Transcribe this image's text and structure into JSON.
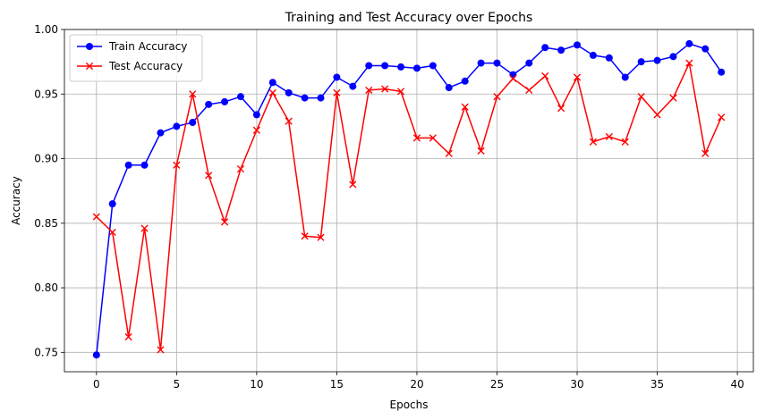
{
  "chart_data": {
    "type": "line",
    "title": "Training and Test Accuracy over Epochs",
    "xlabel": "Epochs",
    "ylabel": "Accuracy",
    "xlim": [
      -2,
      41
    ],
    "ylim": [
      0.735,
      1.0
    ],
    "xticks": [
      0,
      5,
      10,
      15,
      20,
      25,
      30,
      35,
      40
    ],
    "yticks": [
      0.75,
      0.8,
      0.85,
      0.9,
      0.95,
      1.0
    ],
    "ytick_labels": [
      "0.75",
      "0.80",
      "0.85",
      "0.90",
      "0.95",
      "1.00"
    ],
    "grid": true,
    "legend_position": "top-left",
    "x": [
      0,
      1,
      2,
      3,
      4,
      5,
      6,
      7,
      8,
      9,
      10,
      11,
      12,
      13,
      14,
      15,
      16,
      17,
      18,
      19,
      20,
      21,
      22,
      23,
      24,
      25,
      26,
      27,
      28,
      29,
      30,
      31,
      32,
      33,
      34,
      35,
      36,
      37,
      38,
      39
    ],
    "series": [
      {
        "name": "Train Accuracy",
        "color": "#0000ff",
        "marker": "circle",
        "values": [
          0.748,
          0.865,
          0.895,
          0.895,
          0.92,
          0.925,
          0.928,
          0.942,
          0.944,
          0.948,
          0.934,
          0.959,
          0.951,
          0.947,
          0.947,
          0.963,
          0.956,
          0.972,
          0.972,
          0.971,
          0.97,
          0.972,
          0.955,
          0.96,
          0.974,
          0.974,
          0.965,
          0.974,
          0.986,
          0.984,
          0.988,
          0.98,
          0.978,
          0.963,
          0.975,
          0.976,
          0.979,
          0.989,
          0.985,
          0.967
        ]
      },
      {
        "name": "Test Accuracy",
        "color": "#ff0000",
        "marker": "x",
        "values": [
          0.855,
          0.843,
          0.762,
          0.846,
          0.752,
          0.895,
          0.95,
          0.887,
          0.851,
          0.892,
          0.922,
          0.951,
          0.929,
          0.84,
          0.839,
          0.951,
          0.88,
          0.953,
          0.954,
          0.952,
          0.916,
          0.916,
          0.904,
          0.94,
          0.906,
          0.948,
          0.962,
          0.953,
          0.964,
          0.939,
          0.963,
          0.913,
          0.917,
          0.913,
          0.948,
          0.934,
          0.947,
          0.974,
          0.904,
          0.932
        ]
      }
    ]
  }
}
